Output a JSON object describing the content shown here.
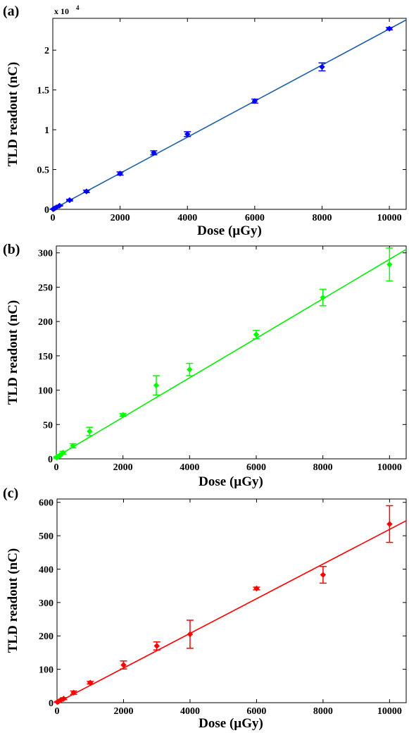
{
  "chart_data": [
    {
      "type": "scatter",
      "panel_label": "(a)",
      "xlabel": "Dose (µGy)",
      "ylabel": "TLD readout (nC)",
      "y_multiplier_label": "x 10",
      "y_multiplier_exponent": "4",
      "xlim": [
        0,
        10500
      ],
      "ylim": [
        0,
        2.4
      ],
      "x_ticks": [
        0,
        2000,
        4000,
        6000,
        8000,
        10000
      ],
      "y_ticks": [
        0,
        0.5,
        1,
        1.5,
        2
      ],
      "y_tick_labels": [
        "0",
        "0.5",
        "1",
        "1.5",
        "2"
      ],
      "color": "#0000ff",
      "fit_color": "#1f5fa8",
      "points": {
        "x": [
          10,
          50,
          100,
          200,
          500,
          1000,
          2000,
          3000,
          4000,
          6000,
          8000,
          10000
        ],
        "y": [
          0.002,
          0.011,
          0.023,
          0.046,
          0.115,
          0.225,
          0.45,
          0.71,
          0.945,
          1.36,
          1.79,
          2.27
        ],
        "err": [
          0.002,
          0.002,
          0.003,
          0.005,
          0.01,
          0.015,
          0.02,
          0.025,
          0.03,
          0.025,
          0.05,
          0.015
        ]
      },
      "fit": {
        "x": [
          0,
          10500
        ],
        "y": [
          0,
          2.38
        ]
      }
    },
    {
      "type": "scatter",
      "panel_label": "(b)",
      "xlabel": "Dose (µGy)",
      "ylabel": "TLD readout (nC)",
      "xlim": [
        0,
        10500
      ],
      "ylim": [
        0,
        310
      ],
      "x_ticks": [
        0,
        2000,
        4000,
        6000,
        8000,
        10000
      ],
      "y_ticks": [
        0,
        50,
        100,
        150,
        200,
        250,
        300
      ],
      "y_tick_labels": [
        "0",
        "50",
        "100",
        "150",
        "200",
        "250",
        "300"
      ],
      "color": "#00ff00",
      "fit_color": "#00ee00",
      "points": {
        "x": [
          10,
          50,
          100,
          200,
          500,
          1000,
          2000,
          3000,
          4000,
          6000,
          8000,
          10000
        ],
        "y": [
          2,
          3,
          5,
          9,
          19,
          40,
          64,
          107,
          130,
          181,
          235,
          283
        ],
        "err": [
          1,
          1,
          1,
          2,
          3,
          6,
          2,
          14,
          9,
          6,
          12,
          24
        ]
      },
      "fit": {
        "x": [
          0,
          10500
        ],
        "y": [
          3,
          305
        ]
      }
    },
    {
      "type": "scatter",
      "panel_label": "(c)",
      "xlabel": "Dose (µGy)",
      "ylabel": "TLD readout (nC)",
      "xlim": [
        0,
        10500
      ],
      "ylim": [
        0,
        610
      ],
      "x_ticks": [
        0,
        2000,
        4000,
        6000,
        8000,
        10000
      ],
      "y_ticks": [
        0,
        100,
        200,
        300,
        400,
        500,
        600
      ],
      "y_tick_labels": [
        "0",
        "100",
        "200",
        "300",
        "400",
        "500",
        "600"
      ],
      "color": "#ff0000",
      "fit_color": "#ff0000",
      "points": {
        "x": [
          10,
          50,
          100,
          200,
          500,
          1000,
          2000,
          3000,
          4000,
          6000,
          8000,
          10000
        ],
        "y": [
          2,
          4,
          7,
          12,
          30,
          60,
          113,
          170,
          205,
          342,
          383,
          535
        ],
        "err": [
          1,
          1,
          2,
          3,
          5,
          4,
          12,
          12,
          42,
          4,
          25,
          55
        ]
      },
      "fit": {
        "x": [
          0,
          10500
        ],
        "y": [
          0,
          545
        ]
      }
    }
  ]
}
